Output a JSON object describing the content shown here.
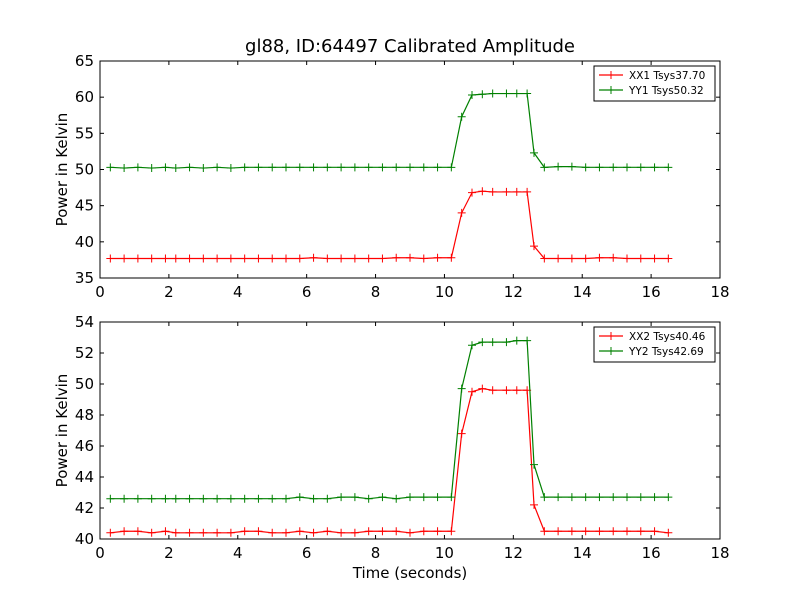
{
  "figure": {
    "title": "gl88, ID:64497 Calibrated Amplitude"
  },
  "chart_data": [
    {
      "type": "line",
      "title": "gl88, ID:64497 Calibrated Amplitude",
      "xlabel": "",
      "ylabel": "Power in Kelvin",
      "xlim": [
        0,
        18
      ],
      "ylim": [
        35,
        65
      ],
      "xticks": [
        "0",
        "2",
        "4",
        "6",
        "8",
        "10",
        "12",
        "14",
        "16",
        "18"
      ],
      "yticks": [
        "35",
        "40",
        "45",
        "50",
        "55",
        "60",
        "65"
      ],
      "legend_position": "top-right",
      "x": [
        0.3,
        0.7,
        1.1,
        1.5,
        1.9,
        2.2,
        2.6,
        3.0,
        3.4,
        3.8,
        4.2,
        4.6,
        5.0,
        5.4,
        5.8,
        6.2,
        6.6,
        7.0,
        7.4,
        7.8,
        8.2,
        8.6,
        9.0,
        9.4,
        9.8,
        10.2,
        10.5,
        10.8,
        11.1,
        11.4,
        11.8,
        12.1,
        12.4,
        12.6,
        12.9,
        13.3,
        13.7,
        14.1,
        14.5,
        14.9,
        15.3,
        15.7,
        16.1,
        16.5
      ],
      "series": [
        {
          "name": "XX1 Tsys37.70",
          "color": "#ff0000",
          "values": [
            37.7,
            37.7,
            37.7,
            37.7,
            37.7,
            37.7,
            37.7,
            37.7,
            37.7,
            37.7,
            37.7,
            37.7,
            37.7,
            37.7,
            37.7,
            37.8,
            37.7,
            37.7,
            37.7,
            37.7,
            37.7,
            37.8,
            37.8,
            37.7,
            37.8,
            37.8,
            44.0,
            46.8,
            47.0,
            46.9,
            46.9,
            46.9,
            46.9,
            39.4,
            37.7,
            37.7,
            37.7,
            37.7,
            37.8,
            37.8,
            37.7,
            37.7,
            37.7,
            37.7
          ]
        },
        {
          "name": "YY1 Tsys50.32",
          "color": "#008000",
          "values": [
            50.3,
            50.2,
            50.3,
            50.2,
            50.3,
            50.2,
            50.3,
            50.2,
            50.3,
            50.2,
            50.3,
            50.3,
            50.3,
            50.3,
            50.3,
            50.3,
            50.3,
            50.3,
            50.3,
            50.3,
            50.3,
            50.3,
            50.3,
            50.3,
            50.3,
            50.3,
            57.3,
            60.3,
            60.4,
            60.5,
            60.5,
            60.5,
            60.5,
            52.3,
            50.3,
            50.4,
            50.4,
            50.3,
            50.3,
            50.3,
            50.3,
            50.3,
            50.3,
            50.3
          ]
        }
      ]
    },
    {
      "type": "line",
      "title": "",
      "xlabel": "Time (seconds)",
      "ylabel": "Power in Kelvin",
      "xlim": [
        0,
        18
      ],
      "ylim": [
        40,
        54
      ],
      "xticks": [
        "0",
        "2",
        "4",
        "6",
        "8",
        "10",
        "12",
        "14",
        "16",
        "18"
      ],
      "yticks": [
        "40",
        "42",
        "44",
        "46",
        "48",
        "50",
        "52",
        "54"
      ],
      "legend_position": "top-right",
      "x": [
        0.3,
        0.7,
        1.1,
        1.5,
        1.9,
        2.2,
        2.6,
        3.0,
        3.4,
        3.8,
        4.2,
        4.6,
        5.0,
        5.4,
        5.8,
        6.2,
        6.6,
        7.0,
        7.4,
        7.8,
        8.2,
        8.6,
        9.0,
        9.4,
        9.8,
        10.2,
        10.5,
        10.8,
        11.1,
        11.4,
        11.8,
        12.1,
        12.4,
        12.6,
        12.9,
        13.3,
        13.7,
        14.1,
        14.5,
        14.9,
        15.3,
        15.7,
        16.1,
        16.5
      ],
      "series": [
        {
          "name": "XX2 Tsys40.46",
          "color": "#ff0000",
          "values": [
            40.4,
            40.5,
            40.5,
            40.4,
            40.5,
            40.4,
            40.4,
            40.4,
            40.4,
            40.4,
            40.5,
            40.5,
            40.4,
            40.4,
            40.5,
            40.4,
            40.5,
            40.4,
            40.4,
            40.5,
            40.5,
            40.5,
            40.4,
            40.5,
            40.5,
            40.5,
            46.8,
            49.5,
            49.7,
            49.6,
            49.6,
            49.6,
            49.6,
            42.2,
            40.5,
            40.5,
            40.5,
            40.5,
            40.5,
            40.5,
            40.5,
            40.5,
            40.5,
            40.4
          ]
        },
        {
          "name": "YY2 Tsys42.69",
          "color": "#008000",
          "values": [
            42.6,
            42.6,
            42.6,
            42.6,
            42.6,
            42.6,
            42.6,
            42.6,
            42.6,
            42.6,
            42.6,
            42.6,
            42.6,
            42.6,
            42.7,
            42.6,
            42.6,
            42.7,
            42.7,
            42.6,
            42.7,
            42.6,
            42.7,
            42.7,
            42.7,
            42.7,
            49.7,
            52.5,
            52.7,
            52.7,
            52.7,
            52.8,
            52.8,
            44.8,
            42.7,
            42.7,
            42.7,
            42.7,
            42.7,
            42.7,
            42.7,
            42.7,
            42.7,
            42.7
          ]
        }
      ]
    }
  ]
}
